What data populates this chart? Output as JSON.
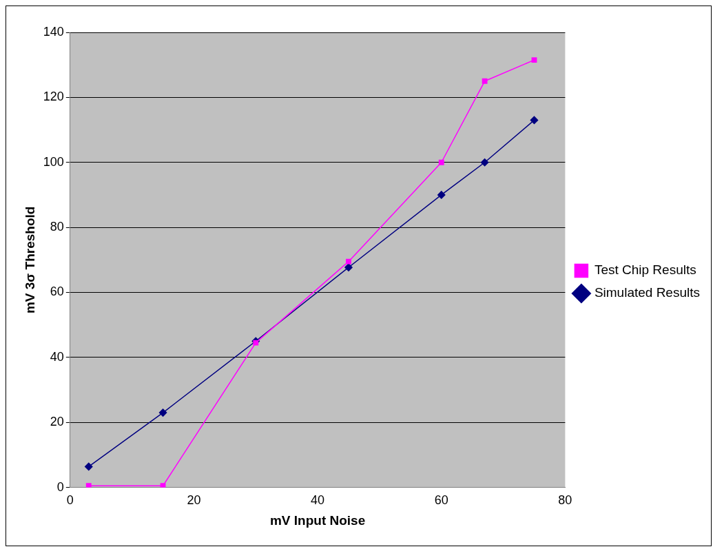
{
  "chart_data": {
    "type": "line",
    "xlabel": "mV Input Noise",
    "ylabel": "mV 3σ Threshold",
    "xlim": [
      0,
      80
    ],
    "xticks": [
      0,
      20,
      40,
      60,
      80
    ],
    "ylim": [
      0,
      140
    ],
    "yticks": [
      0,
      20,
      40,
      60,
      80,
      100,
      120,
      140
    ],
    "grid": "y",
    "legend": "right",
    "line_style": "solid",
    "series": [
      {
        "name": "Simulated Results",
        "color": "#000080",
        "marker": "diamond",
        "x": [
          3,
          15,
          30,
          45,
          60,
          67,
          75
        ],
        "values": [
          6.4,
          23,
          45,
          67.7,
          90,
          100,
          113
        ]
      },
      {
        "name": "Test Chip Results",
        "color": "#ff00ff",
        "marker": "square",
        "x": [
          3,
          15,
          30,
          45,
          60,
          67,
          75
        ],
        "values": [
          0.5,
          0.5,
          44.5,
          69.5,
          100,
          125,
          131.5
        ]
      }
    ]
  }
}
